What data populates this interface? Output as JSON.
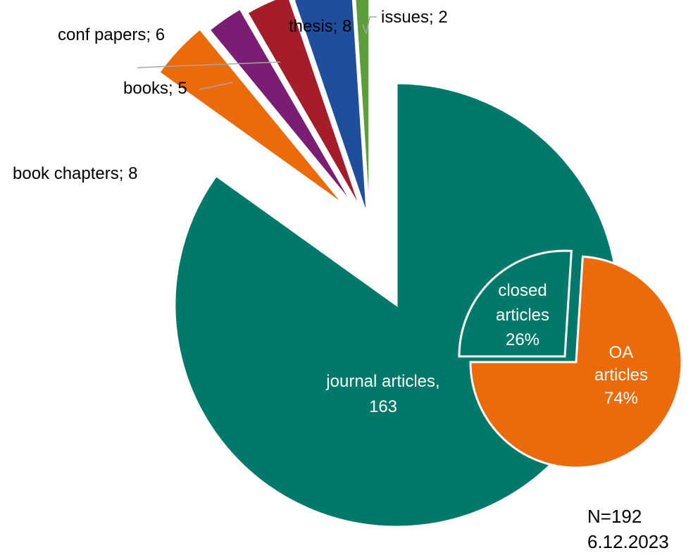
{
  "chart_data": {
    "type": "pie",
    "total": 192,
    "slices": [
      {
        "label": "journal articles",
        "value": 163,
        "color": "#00796B",
        "display_line1": "journal articles,",
        "display_line2": "163"
      },
      {
        "label": "book chapters",
        "value": 8,
        "color": "#EB6A0A",
        "display": "book chapters; 8"
      },
      {
        "label": "books",
        "value": 5,
        "color": "#7B1D72",
        "display": "books; 5"
      },
      {
        "label": "conf papers",
        "value": 6,
        "color": "#A51C2A",
        "display": "conf papers; 6"
      },
      {
        "label": "thesis",
        "value": 8,
        "color": "#1F4E9C",
        "display": "thesis; 8"
      },
      {
        "label": "issues",
        "value": 2,
        "color": "#5C9F3A",
        "display": "issues; 2"
      }
    ],
    "sub_pie": {
      "slices": [
        {
          "label": "OA articles",
          "percent": 74,
          "color": "#EB6A0A",
          "line1": "OA",
          "line2": "articles",
          "line3": "74%"
        },
        {
          "label": "closed articles",
          "percent": 26,
          "color": "#00796B",
          "line1": "closed",
          "line2": "articles",
          "line3": "26%"
        }
      ]
    },
    "annotation": {
      "n": "N=192",
      "date": "6.12.2023"
    }
  }
}
